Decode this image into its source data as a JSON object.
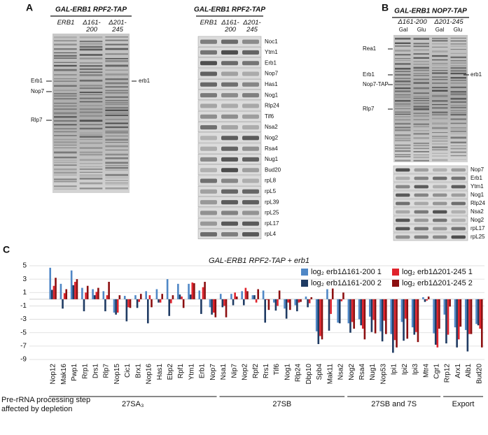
{
  "panel_a": {
    "label": "A",
    "gel": {
      "header": "GAL-ERB1 RPF2-TAP",
      "lanes": [
        "ERB1",
        "Δ161-200",
        "Δ201-245"
      ],
      "left_labels": [
        "Erb1",
        "Nop7",
        "Rlp7"
      ],
      "right_labels": [
        "erb1"
      ]
    },
    "blot": {
      "header": "GAL-ERB1 RPF2-TAP",
      "lanes": [
        "ERB1",
        "Δ161-200",
        "Δ201-245"
      ],
      "rows": [
        "Noc1",
        "Ytm1",
        "Erb1",
        "Nop7",
        "Has1",
        "Nog1",
        "Rlp24",
        "Tif6",
        "Nsa2",
        "Nog2",
        "Rsa4",
        "Nug1",
        "Bud20",
        "rpL8",
        "rpL5",
        "rpL39",
        "rpL25",
        "rpL17",
        "rpL4"
      ]
    }
  },
  "panel_b": {
    "label": "B",
    "gel": {
      "header": "GAL-ERB1 NOP7-TAP",
      "lanes": [
        "Δ161-200",
        "Δ201-245"
      ],
      "conditions": [
        "Gal",
        "Glu",
        "Gal",
        "Glu"
      ],
      "left_labels": [
        "Rea1",
        "Erb1",
        "Nop7-TAP",
        "Rlp7"
      ],
      "right_labels": [
        "erb1"
      ]
    },
    "blot_rows": [
      "Nop7",
      "Erb1",
      "Ytm1",
      "Nog1",
      "Rlp24",
      "Nsa2",
      "Nog2",
      "rpL17",
      "rpL25"
    ]
  },
  "panel_c": {
    "label": "C"
  },
  "chart_data": {
    "type": "bar",
    "title": "GAL-ERB1 RPF2-TAP + erb1",
    "axis_caption": "Pre-rRNA processing step affected by depletion",
    "groups": [
      {
        "label": "27SA₃",
        "categories": [
          "Nop12",
          "Mak16",
          "Pwp1",
          "Rrp1",
          "Drs1",
          "Rlp7",
          "Nop15",
          "Cic1",
          "Brx1",
          "Nop16",
          "Has1",
          "Ebp2",
          "Rpf1",
          "Ytm1",
          "Erb1",
          "Nop7"
        ]
      },
      {
        "label": "27SB",
        "categories": [
          "Nsa1",
          "Nip7",
          "Nop2",
          "Rpf2",
          "Rrs1",
          "Tif6",
          "Nog1",
          "Rlp24",
          "Dbp10",
          "Spb4",
          "Mak11",
          "Nsa2"
        ]
      },
      {
        "label": "27SB and 7S",
        "categories": [
          "Nog2",
          "Rsa4",
          "Nug1",
          "Nop53",
          "Ipi1",
          "Ipi2",
          "Ipi3",
          "Mtr4",
          "Cgr1"
        ]
      },
      {
        "label": "Export",
        "categories": [
          "Rrp12",
          "Arx1",
          "Alb1",
          "Bud20"
        ]
      }
    ],
    "series": [
      {
        "name": "log₂ erb1Δ161-200 1",
        "color": "#4f87c6",
        "values": [
          4.7,
          2.3,
          4.3,
          1.7,
          1.5,
          1.2,
          -2.0,
          0.5,
          0.6,
          1.2,
          1.5,
          3.0,
          2.3,
          2.3,
          1.3,
          -1.2,
          0.8,
          0.8,
          1.2,
          0.6,
          1.3,
          -0.5,
          -1.4,
          -0.9,
          0.4,
          -4.8,
          1.5,
          -3.5,
          -3.6,
          -3.0,
          -2.6,
          -4.8,
          -5.2,
          -3.4,
          -4.2,
          0.3,
          -5.1,
          -2.3,
          -4.2,
          -4.6,
          -3.7
        ]
      },
      {
        "name": "log₂ erb1Δ161-200 2",
        "color": "#1f3b63",
        "values": [
          1.4,
          -1.4,
          2.1,
          -1.8,
          0.6,
          -1.8,
          -2.3,
          -3.3,
          -1.3,
          -3.6,
          -0.5,
          -2.5,
          0.7,
          0.7,
          -2.2,
          -2.3,
          -1.2,
          -0.9,
          -0.9,
          0.6,
          -3.5,
          -1.7,
          -2.9,
          -1.8,
          -1.2,
          -6.7,
          -4.7,
          -3.6,
          -5.0,
          -3.9,
          -4.9,
          -6.3,
          -8.0,
          -6.2,
          -5.3,
          -0.4,
          -6.8,
          -6.6,
          -7.2,
          -7.8,
          -3.9
        ]
      },
      {
        "name": "log₂ erb1Δ201-245 1",
        "color": "#e0232c",
        "values": [
          2.0,
          0.9,
          2.6,
          1.0,
          1.1,
          0.6,
          -2.0,
          -1.2,
          -0.4,
          0.6,
          -0.5,
          -0.6,
          0.4,
          2.5,
          1.8,
          -2.0,
          -1.0,
          1.0,
          1.7,
          -0.5,
          -0.1,
          -1.0,
          -0.5,
          -0.5,
          -0.6,
          -5.5,
          -2.2,
          -0.3,
          -3.4,
          -4.4,
          -3.1,
          -3.2,
          -6.1,
          -2.9,
          -4.9,
          -0.2,
          -7.2,
          -5.3,
          -6.0,
          -5.2,
          -4.4
        ]
      },
      {
        "name": "log₂ erb1Δ201-245 2",
        "color": "#8c0f10",
        "values": [
          3.2,
          1.5,
          3.0,
          2.0,
          1.7,
          2.6,
          0.6,
          -1.3,
          0.8,
          -1.2,
          0.8,
          0.6,
          -1.3,
          2.4,
          2.6,
          -2.7,
          -2.7,
          0.4,
          1.2,
          1.5,
          -1.6,
          1.3,
          -1.6,
          -0.4,
          0.3,
          -6.0,
          1.6,
          1.0,
          -4.4,
          -6.0,
          -5.1,
          -5.2,
          -7.2,
          -5.9,
          -6.4,
          0.4,
          -4.4,
          -1.1,
          -4.1,
          -5.2,
          -7.2
        ]
      }
    ],
    "ylim": [
      -9,
      5
    ],
    "yticks": [
      5,
      3,
      1,
      -1,
      -3,
      -5,
      -7,
      -9
    ],
    "grid": true
  }
}
